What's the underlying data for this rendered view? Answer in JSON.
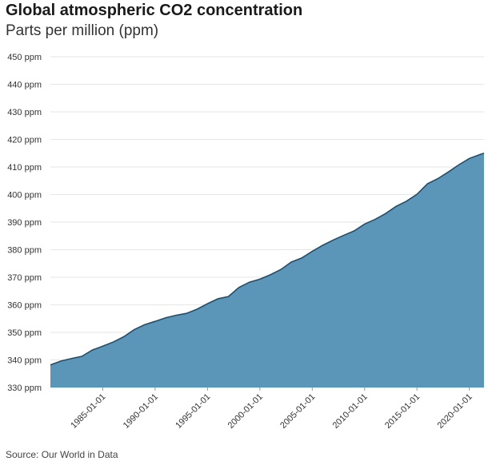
{
  "chart_data": {
    "type": "area",
    "title": "Global atmospheric CO2 concentration",
    "subtitle": "Parts per million (ppm)",
    "source": "Source: Our World in Data",
    "color": "#5b95b8",
    "line_color": "#1f4e6b",
    "grid": true,
    "ylim": [
      330,
      450
    ],
    "yticks": [
      {
        "value": 330,
        "label": "330 ppm"
      },
      {
        "value": 340,
        "label": "340 ppm"
      },
      {
        "value": 350,
        "label": "350 ppm"
      },
      {
        "value": 360,
        "label": "360 ppm"
      },
      {
        "value": 370,
        "label": "370 ppm"
      },
      {
        "value": 380,
        "label": "380 ppm"
      },
      {
        "value": 390,
        "label": "390 ppm"
      },
      {
        "value": 400,
        "label": "400 ppm"
      },
      {
        "value": 410,
        "label": "410 ppm"
      },
      {
        "value": 420,
        "label": "420 ppm"
      },
      {
        "value": 430,
        "label": "430 ppm"
      },
      {
        "value": 440,
        "label": "440 ppm"
      },
      {
        "value": 450,
        "label": "450 ppm"
      }
    ],
    "xlim": [
      1980.0,
      2021.4
    ],
    "xticks": [
      {
        "value": 1985,
        "label": "1985-01-01"
      },
      {
        "value": 1990,
        "label": "1990-01-01"
      },
      {
        "value": 1995,
        "label": "1995-01-01"
      },
      {
        "value": 2000,
        "label": "2000-01-01"
      },
      {
        "value": 2005,
        "label": "2005-01-01"
      },
      {
        "value": 2010,
        "label": "2010-01-01"
      },
      {
        "value": 2015,
        "label": "2015-01-01"
      },
      {
        "value": 2020,
        "label": "2020-01-01"
      }
    ],
    "series": [
      {
        "x": [
          1980.0,
          1981.0,
          1982.0,
          1983.0,
          1984.0,
          1985.0,
          1986.0,
          1987.0,
          1988.0,
          1989.0,
          1990.0,
          1991.0,
          1992.0,
          1993.0,
          1994.0,
          1995.0,
          1996.0,
          1997.0,
          1998.0,
          1999.0,
          2000.0,
          2001.0,
          2002.0,
          2003.0,
          2004.0,
          2005.0,
          2006.0,
          2007.0,
          2008.0,
          2009.0,
          2010.0,
          2011.0,
          2012.0,
          2013.0,
          2014.0,
          2015.0,
          2016.0,
          2017.0,
          2018.0,
          2019.0,
          2020.0,
          2021.0,
          2021.4
        ],
        "y": [
          338.2,
          339.6,
          340.5,
          341.3,
          343.6,
          345.0,
          346.5,
          348.4,
          351.0,
          352.8,
          354.0,
          355.3,
          356.2,
          356.9,
          358.4,
          360.4,
          362.2,
          363.0,
          366.3,
          368.2,
          369.3,
          370.9,
          372.8,
          375.5,
          377.0,
          379.4,
          381.6,
          383.5,
          385.2,
          386.8,
          389.3,
          391.0,
          393.1,
          395.7,
          397.6,
          400.1,
          403.9,
          405.8,
          408.2,
          410.8,
          413.1,
          414.5,
          415.0
        ]
      }
    ]
  }
}
